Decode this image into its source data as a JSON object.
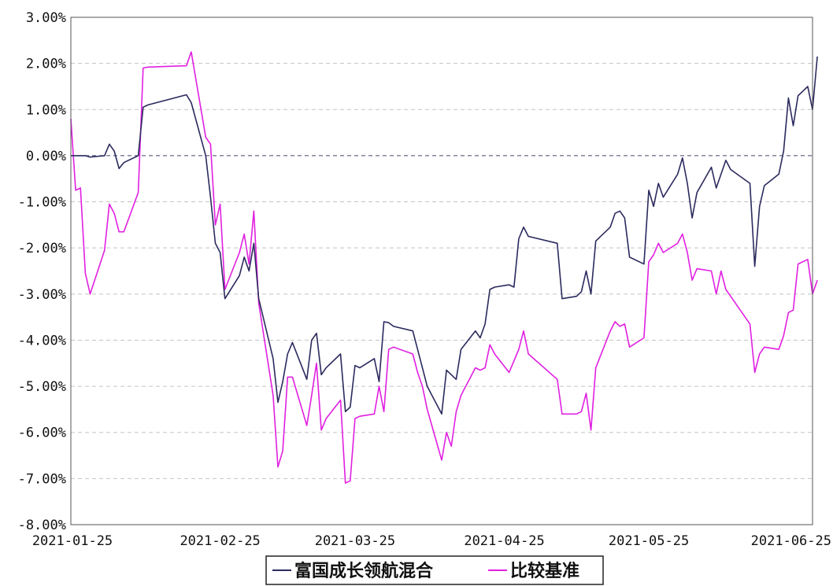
{
  "chart_data": {
    "type": "line",
    "title": "",
    "xlabel": "",
    "ylabel": "",
    "ylim": [
      -8,
      3
    ],
    "xlim": [
      "2021-01-25",
      "2021-06-28"
    ],
    "grid": true,
    "legend_position": "bottom-center",
    "y_ticks": [
      3,
      2,
      1,
      0,
      -1,
      -2,
      -3,
      -4,
      -5,
      -6,
      -7,
      -8
    ],
    "y_tick_labels": [
      "3.00%",
      "2.00%",
      "1.00%",
      "0.00%",
      "-1.00%",
      "-2.00%",
      "-3.00%",
      "-4.00%",
      "-5.00%",
      "-6.00%",
      "-7.00%",
      "-8.00%"
    ],
    "x_ticks": [
      "2021-01-25",
      "2021-02-25",
      "2021-03-25",
      "2021-04-25",
      "2021-05-25",
      "2021-06-25"
    ],
    "x_tick_labels": [
      "2021-01-25",
      "2021-02-25",
      "2021-03-25",
      "2021-04-25",
      "2021-05-25",
      "2021-06-25"
    ],
    "series": [
      {
        "name": "富国成长领航混合",
        "color": "#2b2a5e",
        "points": [
          [
            "2021-01-25",
            0.0
          ],
          [
            "2021-01-28",
            0.0
          ],
          [
            "2021-01-29",
            -0.03
          ],
          [
            "2021-02-01",
            0.0
          ],
          [
            "2021-02-02",
            0.25
          ],
          [
            "2021-02-03",
            0.1
          ],
          [
            "2021-02-04",
            -0.28
          ],
          [
            "2021-02-05",
            -0.15
          ],
          [
            "2021-02-08",
            0.0
          ],
          [
            "2021-02-09",
            1.05
          ],
          [
            "2021-02-10",
            1.1
          ],
          [
            "2021-02-18",
            1.32
          ],
          [
            "2021-02-19",
            1.15
          ],
          [
            "2021-02-22",
            0.0
          ],
          [
            "2021-02-23",
            -0.9
          ],
          [
            "2021-02-24",
            -1.9
          ],
          [
            "2021-02-25",
            -2.1
          ],
          [
            "2021-02-26",
            -3.1
          ],
          [
            "2021-03-01",
            -2.6
          ],
          [
            "2021-03-02",
            -2.2
          ],
          [
            "2021-03-03",
            -2.5
          ],
          [
            "2021-03-04",
            -1.9
          ],
          [
            "2021-03-05",
            -3.1
          ],
          [
            "2021-03-08",
            -4.4
          ],
          [
            "2021-03-09",
            -5.35
          ],
          [
            "2021-03-10",
            -4.9
          ],
          [
            "2021-03-11",
            -4.3
          ],
          [
            "2021-03-12",
            -4.05
          ],
          [
            "2021-03-15",
            -4.85
          ],
          [
            "2021-03-16",
            -4.0
          ],
          [
            "2021-03-17",
            -3.85
          ],
          [
            "2021-03-18",
            -4.75
          ],
          [
            "2021-03-19",
            -4.6
          ],
          [
            "2021-03-22",
            -4.3
          ],
          [
            "2021-03-23",
            -5.55
          ],
          [
            "2021-03-24",
            -5.45
          ],
          [
            "2021-03-25",
            -4.55
          ],
          [
            "2021-03-26",
            -4.6
          ],
          [
            "2021-03-29",
            -4.4
          ],
          [
            "2021-03-30",
            -4.9
          ],
          [
            "2021-03-31",
            -3.6
          ],
          [
            "2021-04-01",
            -3.62
          ],
          [
            "2021-04-02",
            -3.7
          ],
          [
            "2021-04-06",
            -3.8
          ],
          [
            "2021-04-07",
            -4.2
          ],
          [
            "2021-04-08",
            -4.6
          ],
          [
            "2021-04-09",
            -5.0
          ],
          [
            "2021-04-12",
            -5.6
          ],
          [
            "2021-04-13",
            -4.65
          ],
          [
            "2021-04-14",
            -4.75
          ],
          [
            "2021-04-15",
            -4.85
          ],
          [
            "2021-04-16",
            -4.2
          ],
          [
            "2021-04-19",
            -3.8
          ],
          [
            "2021-04-20",
            -3.95
          ],
          [
            "2021-04-21",
            -3.65
          ],
          [
            "2021-04-22",
            -2.9
          ],
          [
            "2021-04-23",
            -2.85
          ],
          [
            "2021-04-26",
            -2.8
          ],
          [
            "2021-04-27",
            -2.85
          ],
          [
            "2021-04-28",
            -1.8
          ],
          [
            "2021-04-29",
            -1.55
          ],
          [
            "2021-04-30",
            -1.75
          ],
          [
            "2021-05-06",
            -1.9
          ],
          [
            "2021-05-07",
            -3.1
          ],
          [
            "2021-05-10",
            -3.05
          ],
          [
            "2021-05-11",
            -2.95
          ],
          [
            "2021-05-12",
            -2.5
          ],
          [
            "2021-05-13",
            -3.0
          ],
          [
            "2021-05-14",
            -1.85
          ],
          [
            "2021-05-17",
            -1.55
          ],
          [
            "2021-05-18",
            -1.25
          ],
          [
            "2021-05-19",
            -1.2
          ],
          [
            "2021-05-20",
            -1.35
          ],
          [
            "2021-05-21",
            -2.2
          ],
          [
            "2021-05-24",
            -2.35
          ],
          [
            "2021-05-25",
            -0.75
          ],
          [
            "2021-05-26",
            -1.1
          ],
          [
            "2021-05-27",
            -0.6
          ],
          [
            "2021-05-28",
            -0.9
          ],
          [
            "2021-05-31",
            -0.4
          ],
          [
            "2021-06-01",
            -0.05
          ],
          [
            "2021-06-02",
            -0.6
          ],
          [
            "2021-06-03",
            -1.35
          ],
          [
            "2021-06-04",
            -0.8
          ],
          [
            "2021-06-07",
            -0.25
          ],
          [
            "2021-06-08",
            -0.7
          ],
          [
            "2021-06-09",
            -0.4
          ],
          [
            "2021-06-10",
            -0.1
          ],
          [
            "2021-06-11",
            -0.3
          ],
          [
            "2021-06-15",
            -0.6
          ],
          [
            "2021-06-16",
            -2.4
          ],
          [
            "2021-06-17",
            -1.1
          ],
          [
            "2021-06-18",
            -0.65
          ],
          [
            "2021-06-21",
            -0.4
          ],
          [
            "2021-06-22",
            0.1
          ],
          [
            "2021-06-23",
            1.25
          ],
          [
            "2021-06-24",
            0.65
          ],
          [
            "2021-06-25",
            1.3
          ],
          [
            "2021-06-27",
            1.5
          ],
          [
            "2021-06-28",
            1.0
          ],
          [
            "2021-06-29",
            2.15
          ]
        ]
      },
      {
        "name": "比较基准",
        "color": "#e020e0",
        "points": [
          [
            "2021-01-25",
            0.8
          ],
          [
            "2021-01-26",
            -0.75
          ],
          [
            "2021-01-27",
            -0.7
          ],
          [
            "2021-01-28",
            -2.55
          ],
          [
            "2021-01-29",
            -3.0
          ],
          [
            "2021-02-01",
            -2.05
          ],
          [
            "2021-02-02",
            -1.05
          ],
          [
            "2021-02-03",
            -1.25
          ],
          [
            "2021-02-04",
            -1.65
          ],
          [
            "2021-02-05",
            -1.65
          ],
          [
            "2021-02-08",
            -0.8
          ],
          [
            "2021-02-09",
            1.9
          ],
          [
            "2021-02-10",
            1.92
          ],
          [
            "2021-02-18",
            1.95
          ],
          [
            "2021-02-19",
            2.25
          ],
          [
            "2021-02-22",
            0.4
          ],
          [
            "2021-02-23",
            0.25
          ],
          [
            "2021-02-24",
            -1.5
          ],
          [
            "2021-02-25",
            -1.05
          ],
          [
            "2021-02-26",
            -2.9
          ],
          [
            "2021-03-01",
            -2.1
          ],
          [
            "2021-03-02",
            -1.7
          ],
          [
            "2021-03-03",
            -2.35
          ],
          [
            "2021-03-04",
            -1.2
          ],
          [
            "2021-03-05",
            -3.2
          ],
          [
            "2021-03-08",
            -5.2
          ],
          [
            "2021-03-09",
            -6.75
          ],
          [
            "2021-03-10",
            -6.4
          ],
          [
            "2021-03-11",
            -4.8
          ],
          [
            "2021-03-12",
            -4.8
          ],
          [
            "2021-03-15",
            -5.85
          ],
          [
            "2021-03-16",
            -5.2
          ],
          [
            "2021-03-17",
            -4.5
          ],
          [
            "2021-03-18",
            -5.95
          ],
          [
            "2021-03-19",
            -5.7
          ],
          [
            "2021-03-22",
            -5.3
          ],
          [
            "2021-03-23",
            -7.1
          ],
          [
            "2021-03-24",
            -7.05
          ],
          [
            "2021-03-25",
            -5.7
          ],
          [
            "2021-03-26",
            -5.65
          ],
          [
            "2021-03-29",
            -5.6
          ],
          [
            "2021-03-30",
            -5.0
          ],
          [
            "2021-03-31",
            -5.55
          ],
          [
            "2021-04-01",
            -4.2
          ],
          [
            "2021-04-02",
            -4.15
          ],
          [
            "2021-04-06",
            -4.3
          ],
          [
            "2021-04-07",
            -4.7
          ],
          [
            "2021-04-08",
            -5.0
          ],
          [
            "2021-04-09",
            -5.5
          ],
          [
            "2021-04-12",
            -6.6
          ],
          [
            "2021-04-13",
            -6.0
          ],
          [
            "2021-04-14",
            -6.3
          ],
          [
            "2021-04-15",
            -5.55
          ],
          [
            "2021-04-16",
            -5.2
          ],
          [
            "2021-04-19",
            -4.6
          ],
          [
            "2021-04-20",
            -4.65
          ],
          [
            "2021-04-21",
            -4.6
          ],
          [
            "2021-04-22",
            -4.1
          ],
          [
            "2021-04-23",
            -4.3
          ],
          [
            "2021-04-26",
            -4.7
          ],
          [
            "2021-04-27",
            -4.45
          ],
          [
            "2021-04-28",
            -4.2
          ],
          [
            "2021-04-29",
            -3.8
          ],
          [
            "2021-04-30",
            -4.3
          ],
          [
            "2021-05-06",
            -4.85
          ],
          [
            "2021-05-07",
            -5.6
          ],
          [
            "2021-05-10",
            -5.6
          ],
          [
            "2021-05-11",
            -5.55
          ],
          [
            "2021-05-12",
            -5.15
          ],
          [
            "2021-05-13",
            -5.95
          ],
          [
            "2021-05-14",
            -4.6
          ],
          [
            "2021-05-17",
            -3.8
          ],
          [
            "2021-05-18",
            -3.6
          ],
          [
            "2021-05-19",
            -3.7
          ],
          [
            "2021-05-20",
            -3.65
          ],
          [
            "2021-05-21",
            -4.15
          ],
          [
            "2021-05-24",
            -3.95
          ],
          [
            "2021-05-25",
            -2.3
          ],
          [
            "2021-05-26",
            -2.15
          ],
          [
            "2021-05-27",
            -1.9
          ],
          [
            "2021-05-28",
            -2.1
          ],
          [
            "2021-05-31",
            -1.9
          ],
          [
            "2021-06-01",
            -1.7
          ],
          [
            "2021-06-02",
            -2.1
          ],
          [
            "2021-06-03",
            -2.7
          ],
          [
            "2021-06-04",
            -2.45
          ],
          [
            "2021-06-07",
            -2.5
          ],
          [
            "2021-06-08",
            -3.0
          ],
          [
            "2021-06-09",
            -2.5
          ],
          [
            "2021-06-10",
            -2.9
          ],
          [
            "2021-06-11",
            -3.05
          ],
          [
            "2021-06-15",
            -3.65
          ],
          [
            "2021-06-16",
            -4.7
          ],
          [
            "2021-06-17",
            -4.3
          ],
          [
            "2021-06-18",
            -4.15
          ],
          [
            "2021-06-21",
            -4.2
          ],
          [
            "2021-06-22",
            -3.9
          ],
          [
            "2021-06-23",
            -3.4
          ],
          [
            "2021-06-24",
            -3.35
          ],
          [
            "2021-06-25",
            -2.35
          ],
          [
            "2021-06-27",
            -2.25
          ],
          [
            "2021-06-28",
            -3.0
          ],
          [
            "2021-06-29",
            -2.7
          ]
        ]
      }
    ]
  }
}
